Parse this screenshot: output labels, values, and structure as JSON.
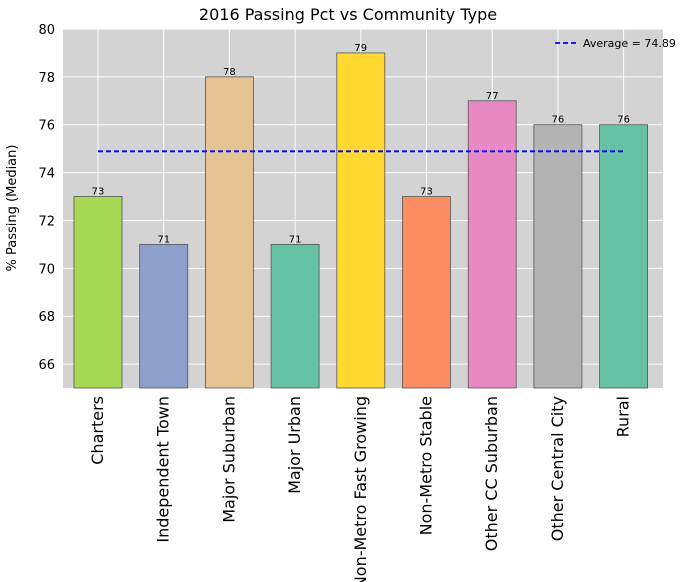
{
  "chart_data": {
    "type": "bar",
    "title": "2016 Passing Pct vs Community Type",
    "xlabel": "",
    "ylabel": "% Passing (Median)",
    "ylim": [
      65,
      80
    ],
    "yticks": [
      66,
      68,
      70,
      72,
      74,
      76,
      78,
      80
    ],
    "grid": true,
    "legend_position": "top-right",
    "categories": [
      "Charters",
      "Independent Town",
      "Major Suburban",
      "Major Urban",
      "Non-Metro Fast Growing",
      "Non-Metro Stable",
      "Other CC Suburban",
      "Other Central City",
      "Rural"
    ],
    "values": [
      73,
      71,
      78,
      71,
      79,
      73,
      77,
      76,
      76
    ],
    "data_labels": [
      "73",
      "71",
      "78",
      "71",
      "79",
      "73",
      "77",
      "76",
      "76"
    ],
    "bar_colors": [
      "#a6d854",
      "#8da0cb",
      "#e5c494",
      "#66c2a5",
      "#ffd92f",
      "#fc8d62",
      "#e78ac3",
      "#b3b3b3",
      "#66c2a5"
    ],
    "reference_line": {
      "label": "Average = 74.89",
      "value": 74.89,
      "color": "#0000ff",
      "style": "dashed"
    }
  }
}
